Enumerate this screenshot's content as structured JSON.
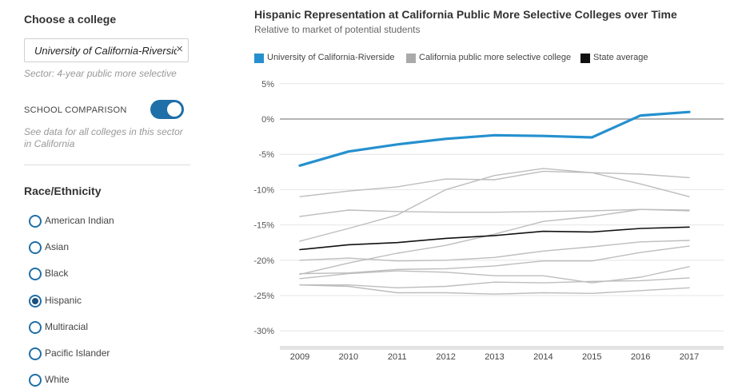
{
  "sidebar": {
    "choose_label": "Choose a college",
    "selected_college": "University of California-Riverside",
    "clear_icon": "×",
    "sector_note": "Sector: 4-year public more selective",
    "comparison_label": "SCHOOL COMPARISON",
    "comparison_on": true,
    "comparison_note": "See data for all colleges in this sector in California",
    "race_title": "Race/Ethnicity",
    "race_options": [
      {
        "label": "American Indian",
        "selected": false
      },
      {
        "label": "Asian",
        "selected": false
      },
      {
        "label": "Black",
        "selected": false
      },
      {
        "label": "Hispanic",
        "selected": true
      },
      {
        "label": "Multiracial",
        "selected": false
      },
      {
        "label": "Pacific Islander",
        "selected": false
      },
      {
        "label": "White",
        "selected": false
      }
    ]
  },
  "colors": {
    "accent": "#2590cf",
    "peer": "#bdbdbd",
    "state": "#111111",
    "toggle": "#1f6fa8",
    "zero_line": "#888888"
  },
  "chart_data": {
    "type": "line",
    "title": "Hispanic Representation at California Public More Selective Colleges over Time",
    "subtitle": "Relative to market of potential students",
    "x": [
      2009,
      2010,
      2011,
      2012,
      2013,
      2014,
      2015,
      2016,
      2017
    ],
    "ylim": [
      -32,
      5
    ],
    "yticks": [
      5,
      0,
      -5,
      -10,
      -15,
      -20,
      -25,
      -30
    ],
    "ytick_labels": [
      "5%",
      "0%",
      "-5%",
      "-10%",
      "-15%",
      "-20%",
      "-25%",
      "-30%"
    ],
    "grid": true,
    "legend_position": "top",
    "legend": [
      {
        "label": "University of California-Riverside",
        "color": "#2590cf"
      },
      {
        "label": "California public more selective college",
        "color": "#aaaaaa"
      },
      {
        "label": "State average",
        "color": "#111111"
      }
    ],
    "series": [
      {
        "name": "University of California-Riverside",
        "role": "highlight",
        "values": [
          -6.6,
          -4.6,
          -3.6,
          -2.8,
          -2.3,
          -2.4,
          -2.6,
          0.5,
          1.0
        ]
      },
      {
        "name": "State average",
        "role": "average",
        "values": [
          -18.5,
          -17.8,
          -17.5,
          -16.9,
          -16.5,
          -15.9,
          -16.0,
          -15.5,
          -15.3
        ]
      },
      {
        "role": "peer",
        "values": [
          -11.0,
          -10.2,
          -9.6,
          -8.5,
          -8.6,
          -7.4,
          -7.6,
          -7.8,
          -8.3
        ]
      },
      {
        "role": "peer",
        "values": [
          -13.8,
          -12.9,
          -13.1,
          -13.2,
          -13.2,
          -13.1,
          -13.0,
          -12.8,
          -12.9
        ]
      },
      {
        "role": "peer",
        "values": [
          -17.3,
          -15.5,
          -13.6,
          -10.0,
          -8.0,
          -7.0,
          -7.6,
          -9.2,
          -11.0
        ]
      },
      {
        "role": "peer",
        "values": [
          -20.0,
          -19.7,
          -20.1,
          -20.0,
          -19.6,
          -18.7,
          -18.1,
          -17.4,
          -17.2
        ]
      },
      {
        "role": "peer",
        "values": [
          -22.0,
          -20.4,
          -19.0,
          -17.9,
          -16.3,
          -14.5,
          -13.8,
          -12.8,
          -13.0
        ]
      },
      {
        "role": "peer",
        "values": [
          -21.9,
          -21.8,
          -21.3,
          -21.2,
          -20.8,
          -20.1,
          -20.1,
          -18.9,
          -18.0
        ]
      },
      {
        "role": "peer",
        "values": [
          -22.6,
          -21.9,
          -21.5,
          -21.7,
          -22.2,
          -22.2,
          -23.2,
          -22.4,
          -20.9
        ]
      },
      {
        "role": "peer",
        "values": [
          -23.5,
          -23.5,
          -23.9,
          -23.7,
          -23.1,
          -23.2,
          -23.0,
          -22.9,
          -22.5
        ]
      },
      {
        "role": "peer",
        "values": [
          -23.5,
          -23.7,
          -24.6,
          -24.6,
          -24.8,
          -24.6,
          -24.7,
          -24.3,
          -23.9
        ]
      }
    ]
  }
}
